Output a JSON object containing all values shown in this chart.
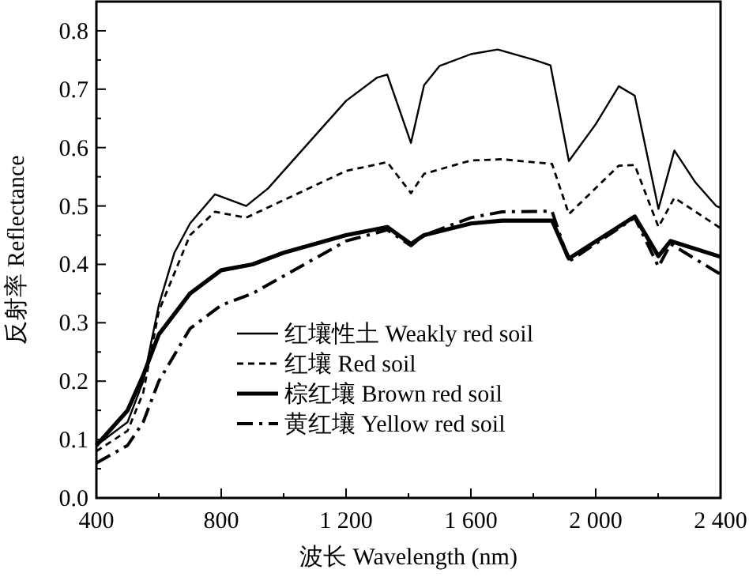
{
  "chart_data": {
    "type": "line",
    "xlabel": "波长 Wavelength (nm)",
    "ylabel": "反射率 Reflectance",
    "xlim": [
      400,
      2400
    ],
    "ylim": [
      0,
      0.85
    ],
    "xticks": [
      {
        "value": 400,
        "label": "400"
      },
      {
        "value": 600,
        "label": null
      },
      {
        "value": 800,
        "label": "800"
      },
      {
        "value": 1000,
        "label": null
      },
      {
        "value": 1200,
        "label": "1 200"
      },
      {
        "value": 1400,
        "label": null
      },
      {
        "value": 1600,
        "label": "1 600"
      },
      {
        "value": 1800,
        "label": null
      },
      {
        "value": 2000,
        "label": "2 000"
      },
      {
        "value": 2200,
        "label": null
      },
      {
        "value": 2400,
        "label": "2 400"
      }
    ],
    "yticks": [
      {
        "value": 0,
        "label": "0.0"
      },
      {
        "value": 0.05,
        "label": null
      },
      {
        "value": 0.1,
        "label": "0.1"
      },
      {
        "value": 0.15,
        "label": null
      },
      {
        "value": 0.2,
        "label": "0.2"
      },
      {
        "value": 0.25,
        "label": null
      },
      {
        "value": 0.3,
        "label": "0.3"
      },
      {
        "value": 0.35,
        "label": null
      },
      {
        "value": 0.4,
        "label": "0.4"
      },
      {
        "value": 0.45,
        "label": null
      },
      {
        "value": 0.5,
        "label": "0.5"
      },
      {
        "value": 0.55,
        "label": null
      },
      {
        "value": 0.6,
        "label": "0.6"
      },
      {
        "value": 0.65,
        "label": null
      },
      {
        "value": 0.7,
        "label": "0.7"
      },
      {
        "value": 0.75,
        "label": null
      },
      {
        "value": 0.8,
        "label": "0.8"
      }
    ],
    "grid": false,
    "legend": "bottom right",
    "marker": "none",
    "series": [
      {
        "name": "红壤性土 Weakly red soil",
        "color": "#000000",
        "line_style": "solid",
        "x": [
          400,
          500,
          550,
          600,
          650,
          700,
          780,
          880,
          950,
          1100,
          1200,
          1300,
          1332,
          1408,
          1450,
          1500,
          1600,
          1686,
          1804,
          1855,
          1914,
          2000,
          2074,
          2125,
          2201,
          2252,
          2320,
          2386,
          2400
        ],
        "values": [
          0.09,
          0.13,
          0.2,
          0.33,
          0.42,
          0.47,
          0.52,
          0.5,
          0.53,
          0.62,
          0.68,
          0.72,
          0.725,
          0.608,
          0.707,
          0.74,
          0.76,
          0.768,
          0.75,
          0.741,
          0.577,
          0.64,
          0.705,
          0.689,
          0.495,
          0.595,
          0.54,
          0.5,
          0.497
        ]
      },
      {
        "name": "红壤 Red soil",
        "color": "#000000",
        "line_style": "dashed",
        "x": [
          400,
          500,
          550,
          600,
          700,
          780,
          880,
          1000,
          1200,
          1332,
          1408,
          1450,
          1600,
          1700,
          1860,
          1914,
          2074,
          2125,
          2201,
          2252,
          2400
        ],
        "values": [
          0.08,
          0.115,
          0.18,
          0.32,
          0.45,
          0.49,
          0.48,
          0.51,
          0.56,
          0.575,
          0.522,
          0.555,
          0.578,
          0.58,
          0.572,
          0.486,
          0.569,
          0.57,
          0.464,
          0.514,
          0.462
        ]
      },
      {
        "name": "棕红壤 Brown red soil",
        "color": "#000000",
        "line_style": "solid",
        "x": [
          400,
          500,
          550,
          600,
          700,
          800,
          900,
          1000,
          1200,
          1332,
          1408,
          1450,
          1600,
          1700,
          1860,
          1914,
          2125,
          2201,
          2240,
          2400
        ],
        "values": [
          0.09,
          0.15,
          0.21,
          0.28,
          0.35,
          0.39,
          0.4,
          0.42,
          0.45,
          0.464,
          0.435,
          0.45,
          0.47,
          0.475,
          0.475,
          0.41,
          0.482,
          0.414,
          0.44,
          0.413
        ]
      },
      {
        "name": "黄红壤 Yellow red soil",
        "color": "#000000",
        "line_style": "dashdot",
        "x": [
          400,
          500,
          550,
          600,
          700,
          800,
          900,
          1000,
          1100,
          1200,
          1332,
          1408,
          1450,
          1600,
          1700,
          1860,
          1914,
          2125,
          2201,
          2240,
          2400
        ],
        "values": [
          0.06,
          0.09,
          0.13,
          0.2,
          0.29,
          0.33,
          0.35,
          0.38,
          0.41,
          0.44,
          0.459,
          0.432,
          0.45,
          0.48,
          0.49,
          0.491,
          0.405,
          0.48,
          0.396,
          0.435,
          0.383
        ]
      }
    ]
  }
}
